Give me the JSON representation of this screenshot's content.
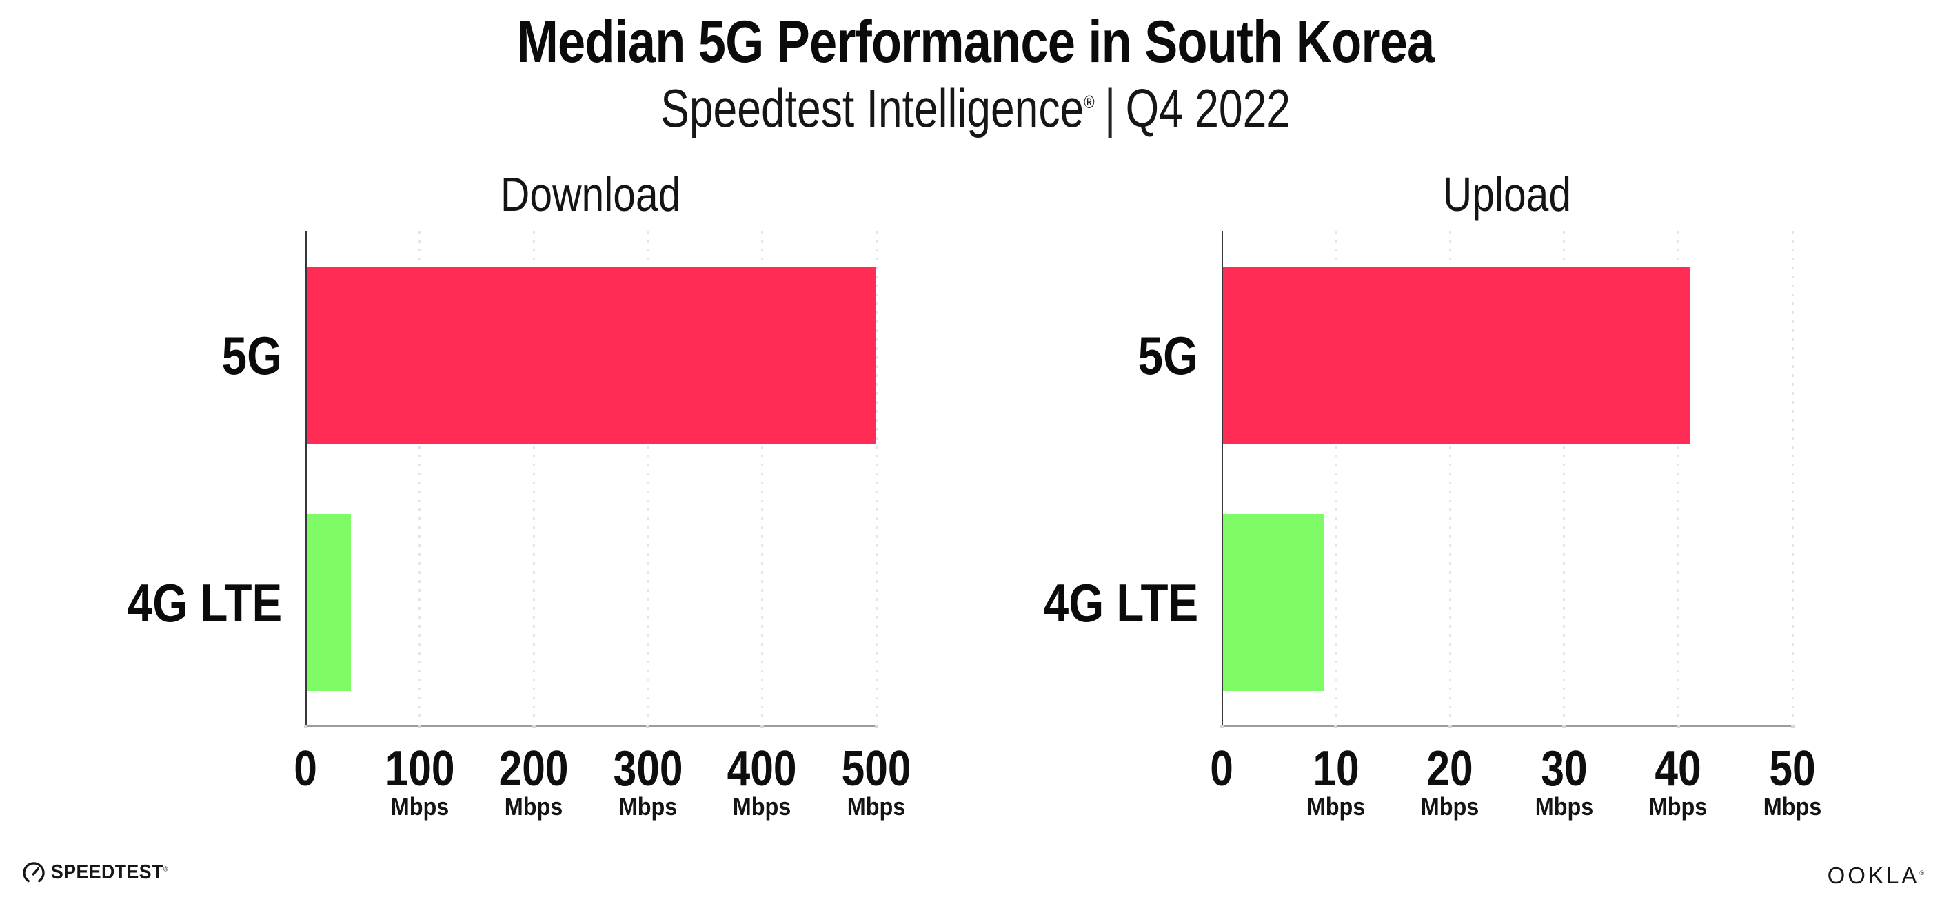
{
  "header": {
    "title": "Median 5G Performance in South Korea",
    "subtitle": {
      "brand": "Speedtest Intelligence",
      "registered": "®",
      "divider": "|",
      "period": "Q4 2022"
    }
  },
  "chart_data": [
    {
      "type": "bar",
      "orientation": "horizontal",
      "title": "Download",
      "categories": [
        "5G",
        "4G LTE"
      ],
      "values": [
        500,
        40
      ],
      "unit": "Mbps",
      "xlim": [
        0,
        500
      ],
      "xticks": [
        0,
        100,
        200,
        300,
        400,
        500
      ],
      "bar_colors": [
        "#FF2D55",
        "#80FB68"
      ],
      "grid": "dotted-vertical-at-each-tick",
      "legend": "none"
    },
    {
      "type": "bar",
      "orientation": "horizontal",
      "title": "Upload",
      "categories": [
        "5G",
        "4G LTE"
      ],
      "values": [
        41,
        9
      ],
      "unit": "Mbps",
      "xlim": [
        0,
        50
      ],
      "xticks": [
        0,
        10,
        20,
        30,
        40,
        50
      ],
      "bar_colors": [
        "#FF2D55",
        "#80FB68"
      ],
      "grid": "dotted-vertical-at-each-tick",
      "legend": "none"
    }
  ],
  "footer": {
    "speedtest_wordmark": "SPEEDTEST",
    "speedtest_registered": "®",
    "ookla_wordmark": "OOKLA",
    "ookla_registered": "®"
  },
  "colors": {
    "bar_5g": "#FF2D55",
    "bar_4g_lte": "#80FB68",
    "gridline": "#E4E4EE",
    "y_axis": "#37373D",
    "x_axis": "#9B9BA1",
    "text": "#111111",
    "background": "#FFFFFF"
  }
}
